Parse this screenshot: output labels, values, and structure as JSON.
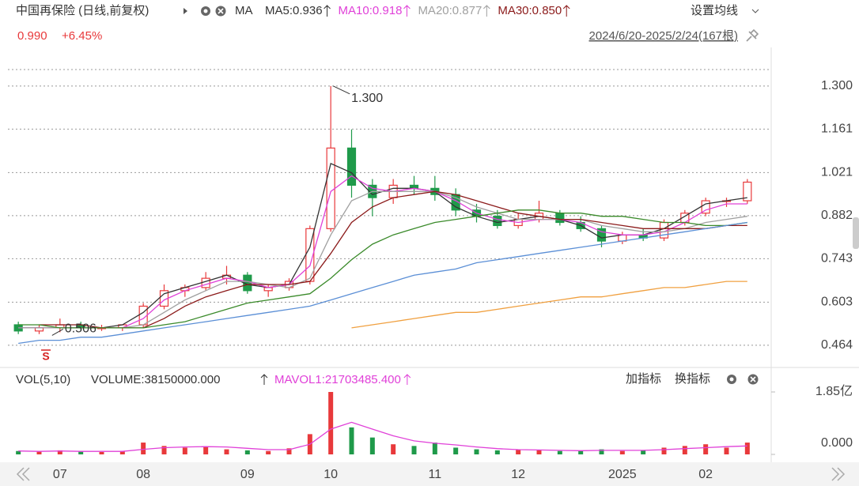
{
  "header": {
    "title": "中国再保险 (日线,前复权)",
    "indicator": "MA",
    "settings": "设置均线",
    "price": "0.990",
    "change": "+6.45%",
    "range": "2024/6/20-2025/2/24(167根)",
    "signal_mark": "S"
  },
  "volume_header": {
    "name": "VOL(5,10)",
    "volume": "VOLUME:38150000.000",
    "add": "加指标",
    "switch": "换指标"
  },
  "chart_data": [
    {
      "type": "candlestick",
      "categories": [
        null,
        null,
        "07",
        null,
        null,
        null,
        "08",
        null,
        null,
        null,
        null,
        "09",
        null,
        null,
        null,
        "10",
        null,
        null,
        null,
        null,
        "11",
        null,
        null,
        null,
        "12",
        null,
        null,
        null,
        null,
        "2025",
        null,
        null,
        null,
        "02",
        null,
        null
      ],
      "open": [
        0.53,
        0.51,
        0.52,
        0.53,
        0.52,
        0.52,
        0.53,
        0.59,
        0.64,
        0.65,
        0.68,
        0.69,
        0.64,
        0.65,
        0.67,
        0.84,
        1.1,
        0.98,
        0.94,
        0.98,
        0.97,
        0.95,
        0.9,
        0.88,
        0.85,
        0.87,
        0.89,
        0.86,
        0.84,
        0.8,
        0.82,
        0.81,
        0.86,
        0.89,
        0.93,
        0.93
      ],
      "high": [
        0.54,
        0.53,
        0.55,
        0.54,
        0.53,
        0.53,
        0.6,
        0.66,
        0.66,
        0.7,
        0.72,
        0.7,
        0.66,
        0.68,
        0.85,
        1.3,
        1.16,
        1.0,
        1.0,
        1.01,
        1.01,
        0.97,
        0.92,
        0.9,
        0.89,
        0.93,
        0.9,
        0.88,
        0.85,
        0.83,
        0.84,
        0.87,
        0.9,
        0.94,
        0.94,
        1.0
      ],
      "low": [
        0.5,
        0.5,
        0.506,
        0.51,
        0.51,
        0.51,
        0.52,
        0.58,
        0.62,
        0.64,
        0.66,
        0.63,
        0.62,
        0.64,
        0.66,
        0.83,
        0.94,
        0.88,
        0.92,
        0.95,
        0.93,
        0.88,
        0.86,
        0.84,
        0.84,
        0.86,
        0.85,
        0.83,
        0.78,
        0.79,
        0.8,
        0.8,
        0.85,
        0.88,
        0.91,
        0.92
      ],
      "close": [
        0.51,
        0.52,
        0.53,
        0.52,
        0.52,
        0.53,
        0.59,
        0.64,
        0.65,
        0.68,
        0.69,
        0.64,
        0.65,
        0.67,
        0.84,
        1.1,
        0.98,
        0.94,
        0.98,
        0.97,
        0.95,
        0.9,
        0.88,
        0.85,
        0.87,
        0.89,
        0.86,
        0.84,
        0.8,
        0.82,
        0.81,
        0.86,
        0.89,
        0.93,
        0.93,
        0.99
      ],
      "up_color": "#e8393b",
      "down_color": "#1f9a4a",
      "series": [
        {
          "name": "MA5:0.936",
          "color": "#333333",
          "values": [
            0.52,
            0.52,
            0.52,
            0.52,
            0.52,
            0.53,
            0.57,
            0.63,
            0.65,
            0.67,
            0.69,
            0.66,
            0.65,
            0.66,
            0.78,
            1.05,
            1.02,
            0.95,
            0.97,
            0.97,
            0.96,
            0.91,
            0.88,
            0.86,
            0.87,
            0.88,
            0.87,
            0.85,
            0.81,
            0.82,
            0.82,
            0.84,
            0.88,
            0.92,
            0.93,
            0.94
          ]
        },
        {
          "name": "MA10:0.918",
          "color": "#e040d8",
          "values": [
            0.52,
            0.52,
            0.52,
            0.52,
            0.52,
            0.52,
            0.55,
            0.61,
            0.64,
            0.66,
            0.68,
            0.67,
            0.65,
            0.66,
            0.72,
            0.96,
            1.01,
            0.97,
            0.96,
            0.97,
            0.96,
            0.93,
            0.89,
            0.87,
            0.86,
            0.87,
            0.87,
            0.86,
            0.83,
            0.82,
            0.82,
            0.83,
            0.86,
            0.9,
            0.92,
            0.92
          ]
        },
        {
          "name": "MA20:0.877",
          "color": "#a0a0a0",
          "values": [
            0.52,
            0.52,
            0.52,
            0.52,
            0.52,
            0.52,
            0.53,
            0.57,
            0.61,
            0.64,
            0.67,
            0.67,
            0.66,
            0.65,
            0.68,
            0.82,
            0.93,
            0.96,
            0.96,
            0.96,
            0.96,
            0.94,
            0.91,
            0.89,
            0.87,
            0.87,
            0.87,
            0.87,
            0.85,
            0.84,
            0.83,
            0.83,
            0.84,
            0.86,
            0.87,
            0.88
          ]
        },
        {
          "name": "MA30:0.850",
          "color": "#8b1a1a",
          "values": [
            null,
            0.53,
            0.53,
            0.53,
            0.52,
            0.52,
            0.52,
            0.55,
            0.59,
            0.62,
            0.64,
            0.66,
            0.66,
            0.66,
            0.67,
            0.76,
            0.86,
            0.91,
            0.94,
            0.95,
            0.96,
            0.95,
            0.93,
            0.91,
            0.89,
            0.88,
            0.87,
            0.87,
            0.86,
            0.85,
            0.84,
            0.84,
            0.84,
            0.84,
            0.85,
            0.85
          ]
        },
        {
          "color": "#3a8a2a",
          "values": [
            0.53,
            0.53,
            0.52,
            0.52,
            0.52,
            0.52,
            0.52,
            0.53,
            0.54,
            0.56,
            0.58,
            0.6,
            0.61,
            0.62,
            0.63,
            0.68,
            0.74,
            0.79,
            0.82,
            0.84,
            0.86,
            0.87,
            0.88,
            0.89,
            0.9,
            0.9,
            0.89,
            0.89,
            0.88,
            0.88,
            0.87,
            0.86,
            0.86,
            0.85,
            0.85,
            0.86
          ]
        },
        {
          "color": "#5b8fd6",
          "values": [
            0.47,
            0.48,
            0.48,
            0.49,
            0.49,
            0.5,
            0.51,
            0.52,
            0.53,
            0.54,
            0.55,
            0.56,
            0.57,
            0.58,
            0.59,
            0.61,
            0.63,
            0.65,
            0.67,
            0.69,
            0.7,
            0.71,
            0.73,
            0.74,
            0.75,
            0.76,
            0.77,
            0.78,
            0.79,
            0.8,
            0.81,
            0.82,
            0.83,
            0.84,
            0.85,
            0.86
          ]
        },
        {
          "color": "#f0a040",
          "values": [
            null,
            null,
            null,
            null,
            null,
            null,
            null,
            null,
            null,
            null,
            null,
            null,
            null,
            null,
            null,
            null,
            0.52,
            0.53,
            0.54,
            0.55,
            0.56,
            0.57,
            0.57,
            0.58,
            0.59,
            0.6,
            0.61,
            0.62,
            0.62,
            0.63,
            0.64,
            0.65,
            0.65,
            0.66,
            0.67,
            0.67
          ]
        }
      ],
      "ylim": [
        0.4,
        1.399
      ],
      "yticks": [
        {
          "value": 1.3,
          "label": "1.300"
        },
        1.161,
        1.021,
        0.882,
        0.743,
        0.603,
        0.464
      ],
      "grid": true,
      "annotations": [
        {
          "label": "1.300",
          "value": 1.3,
          "at": "high"
        },
        {
          "label": "0.506",
          "value": 0.506,
          "at": "low"
        }
      ]
    },
    {
      "type": "bar",
      "values": [
        0.1,
        0.08,
        0.12,
        0.08,
        0.07,
        0.09,
        0.35,
        0.25,
        0.2,
        0.22,
        0.15,
        0.12,
        0.1,
        0.18,
        0.6,
        1.85,
        0.8,
        0.5,
        0.3,
        0.25,
        0.35,
        0.2,
        0.15,
        0.12,
        0.15,
        0.12,
        0.1,
        0.1,
        0.15,
        0.1,
        0.12,
        0.2,
        0.25,
        0.3,
        0.2,
        0.35
      ],
      "series": [
        {
          "name": "MAVOL1:21703485.400",
          "color": "#e040d8",
          "values": [
            0.1,
            0.09,
            0.1,
            0.09,
            0.09,
            0.09,
            0.15,
            0.2,
            0.22,
            0.23,
            0.22,
            0.18,
            0.14,
            0.14,
            0.3,
            0.75,
            0.95,
            0.75,
            0.55,
            0.4,
            0.33,
            0.28,
            0.22,
            0.17,
            0.14,
            0.13,
            0.12,
            0.11,
            0.12,
            0.12,
            0.12,
            0.14,
            0.17,
            0.2,
            0.23,
            0.25
          ]
        }
      ],
      "ylim": [
        0,
        1.85
      ],
      "yticks": [
        {
          "value": 0,
          "label": "0.000"
        },
        {
          "value": 1.85,
          "label": "1.85亿"
        }
      ]
    }
  ]
}
